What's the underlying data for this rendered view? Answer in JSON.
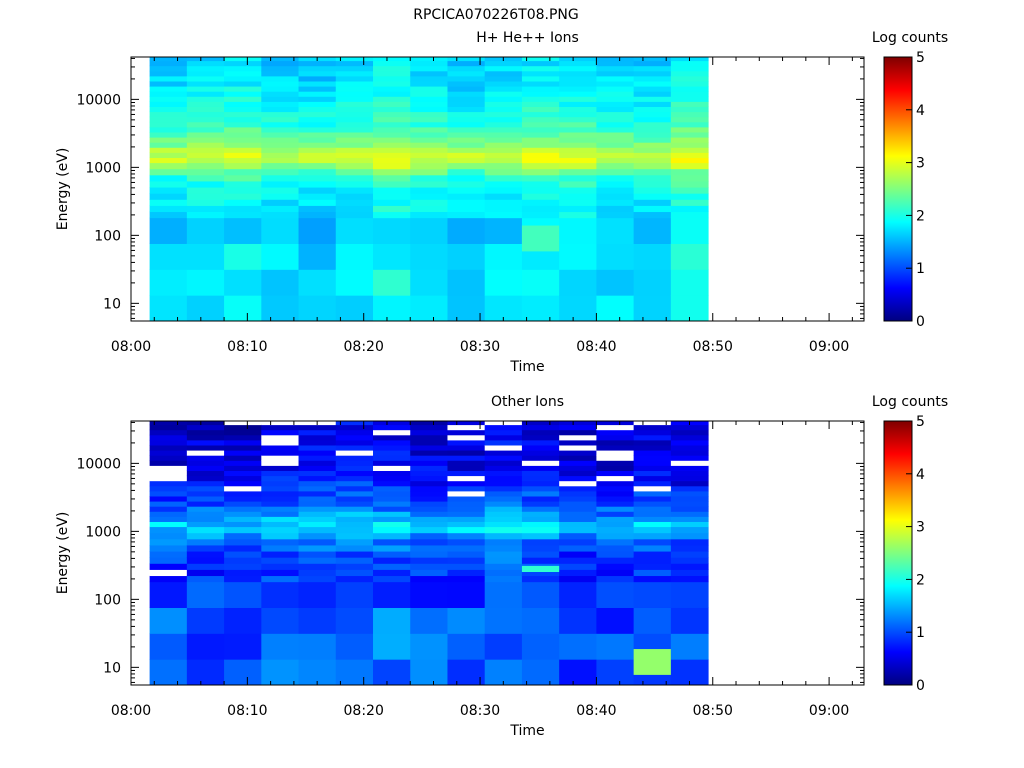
{
  "figure": {
    "title": "RPCICA070226T08.PNG"
  },
  "chart_data": [
    {
      "type": "heatmap",
      "title": "H+ He++ Ions",
      "xlabel": "Time",
      "ylabel": "Energy (eV)",
      "ylog": true,
      "x_ticks": [
        "08:00",
        "08:10",
        "08:20",
        "08:30",
        "08:40",
        "08:50",
        "09:00"
      ],
      "y_ticks": [
        "10",
        "100",
        "1000",
        "10000"
      ],
      "xlim": [
        "08:00",
        "09:03"
      ],
      "ylim": [
        5.5,
        42000
      ],
      "data_x_range": [
        "08:01.6",
        "08:49.6"
      ],
      "colorbar": {
        "label": "Log counts",
        "range": [
          0,
          5
        ],
        "ticks": [
          "0",
          "1",
          "2",
          "3",
          "4",
          "5"
        ]
      },
      "profile": [
        [
          5.5,
          1.8
        ],
        [
          20,
          1.8
        ],
        [
          60,
          1.8
        ],
        [
          100,
          1.6
        ],
        [
          200,
          1.8
        ],
        [
          400,
          1.9
        ],
        [
          700,
          2.1
        ],
        [
          900,
          2.4
        ],
        [
          1100,
          2.75
        ],
        [
          1400,
          2.95
        ],
        [
          1800,
          2.75
        ],
        [
          2500,
          2.45
        ],
        [
          4000,
          2.15
        ],
        [
          8000,
          1.95
        ],
        [
          20000,
          1.75
        ],
        [
          42000,
          1.7
        ]
      ],
      "noise": 0.18,
      "bin_noise": 0.15,
      "special_cells": [
        {
          "time": "08:35",
          "energy": 90,
          "value": 2.2
        }
      ]
    },
    {
      "type": "heatmap",
      "title": "Other Ions",
      "xlabel": "Time",
      "ylabel": "Energy (eV)",
      "ylog": true,
      "x_ticks": [
        "08:00",
        "08:10",
        "08:20",
        "08:30",
        "08:40",
        "08:50",
        "09:00"
      ],
      "y_ticks": [
        "10",
        "100",
        "1000",
        "10000"
      ],
      "xlim": [
        "08:00",
        "09:03"
      ],
      "ylim": [
        5.5,
        42000
      ],
      "data_x_range": [
        "08:01.6",
        "08:49.6"
      ],
      "colorbar": {
        "label": "Log counts",
        "range": [
          0,
          5
        ],
        "ticks": [
          "0",
          "1",
          "2",
          "3",
          "4",
          "5"
        ]
      },
      "profile": [
        [
          5.5,
          1.05
        ],
        [
          20,
          1.1
        ],
        [
          60,
          1.1
        ],
        [
          100,
          1.0
        ],
        [
          200,
          0.85
        ],
        [
          400,
          0.95
        ],
        [
          700,
          1.15
        ],
        [
          900,
          1.4
        ],
        [
          1100,
          1.75
        ],
        [
          1400,
          1.6
        ],
        [
          1800,
          1.3
        ],
        [
          3000,
          0.95
        ],
        [
          8000,
          0.55
        ],
        [
          20000,
          0.5
        ],
        [
          42000,
          0.45
        ]
      ],
      "noise": 0.3,
      "bin_noise": 0.15,
      "gap_rate": 0.12,
      "special_cells": [
        {
          "time": "08:45",
          "energy": 12,
          "value": 2.6
        },
        {
          "time": "08:35",
          "energy": 280,
          "value": 2.1
        }
      ]
    }
  ]
}
